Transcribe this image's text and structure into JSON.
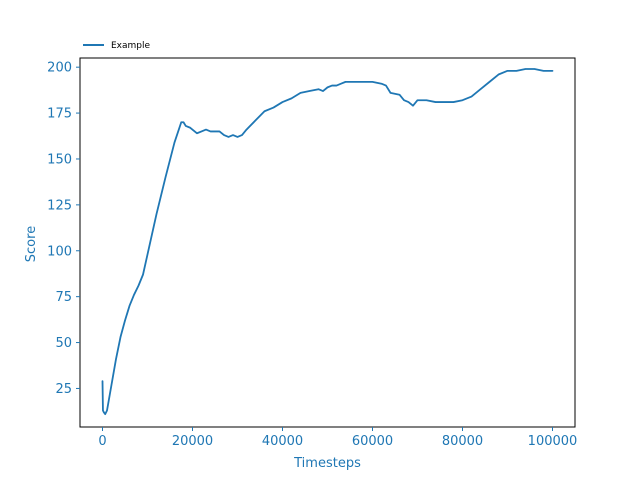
{
  "chart_data": {
    "type": "line",
    "title": "",
    "xlabel": "Timesteps",
    "ylabel": "Score",
    "xlim": [
      -5000,
      105000
    ],
    "ylim": [
      4,
      205
    ],
    "xticks": [
      0,
      20000,
      40000,
      60000,
      80000,
      100000
    ],
    "yticks": [
      25,
      50,
      75,
      100,
      125,
      150,
      175,
      200
    ],
    "grid": false,
    "legend_position": "top-left, outside plot",
    "axis_color": "#1f77b4",
    "series": [
      {
        "name": "Example",
        "color": "#1f77b4",
        "x": [
          0,
          100,
          300,
          600,
          1000,
          2000,
          3000,
          4000,
          5000,
          6000,
          7000,
          8000,
          9000,
          10000,
          12000,
          14000,
          16000,
          17500,
          18000,
          18500,
          19500,
          21000,
          22000,
          23000,
          24000,
          26000,
          27000,
          28000,
          29000,
          30000,
          31000,
          32000,
          34000,
          36000,
          38000,
          40000,
          42000,
          44000,
          46000,
          48000,
          49000,
          50000,
          51000,
          52000,
          53000,
          54000,
          56000,
          58000,
          60000,
          62000,
          63000,
          64000,
          66000,
          67000,
          68000,
          69000,
          70000,
          72000,
          74000,
          76000,
          78000,
          80000,
          82000,
          84000,
          86000,
          88000,
          90000,
          92000,
          94000,
          96000,
          98000,
          99000,
          100000
        ],
        "y": [
          29,
          13,
          12,
          11,
          13,
          27,
          41,
          53,
          62,
          70,
          76,
          81,
          87,
          98,
          120,
          140,
          159,
          170,
          170,
          168,
          167,
          164,
          165,
          166,
          165,
          165,
          163,
          162,
          163,
          162,
          163,
          166,
          171,
          176,
          178,
          181,
          183,
          186,
          187,
          188,
          187,
          189,
          190,
          190,
          191,
          192,
          192,
          192,
          192,
          191,
          190,
          186,
          185,
          182,
          181,
          179,
          182,
          182,
          181,
          181,
          181,
          182,
          184,
          188,
          192,
          196,
          198,
          198,
          199,
          199,
          198,
          198,
          198
        ]
      }
    ]
  }
}
